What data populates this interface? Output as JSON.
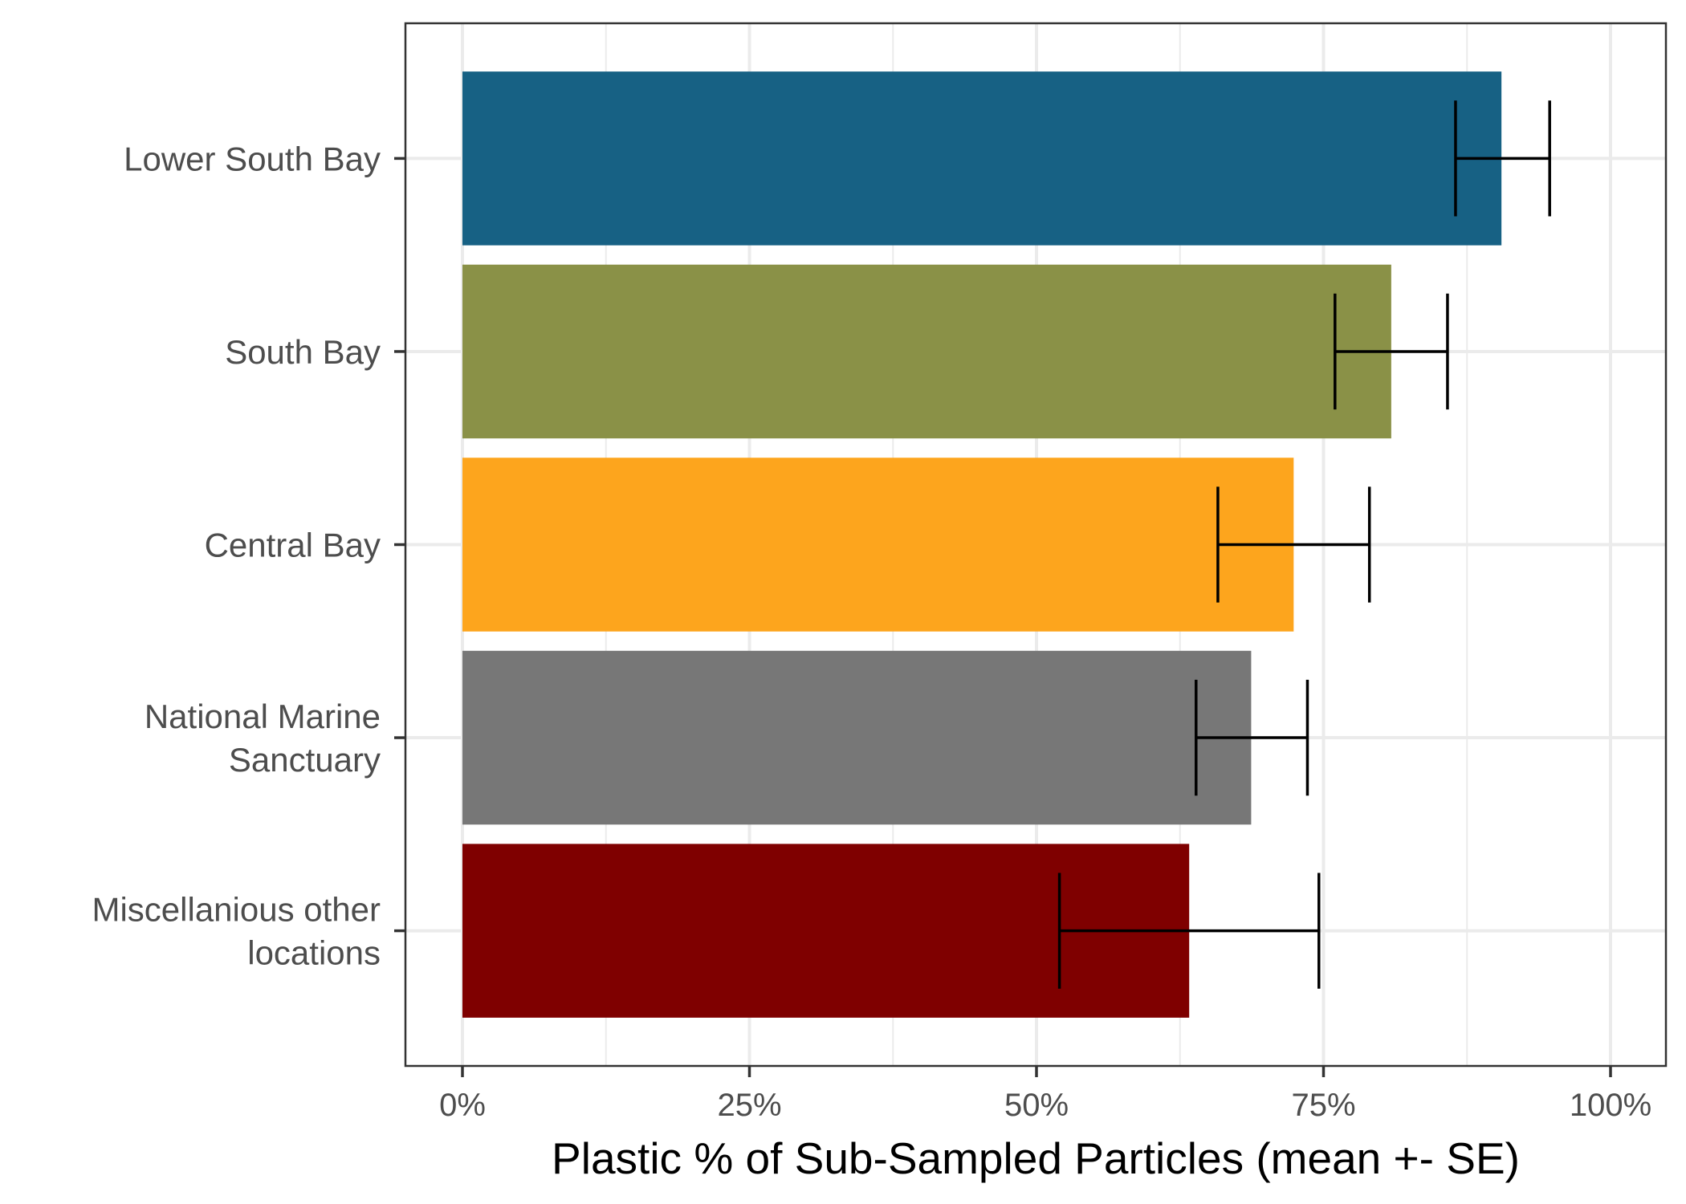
{
  "chart_data": {
    "type": "bar",
    "orientation": "horizontal",
    "title": "",
    "xlabel": "Plastic % of Sub-Sampled Particles (mean +- SE)",
    "ylabel": "",
    "xlim": [
      0,
      1
    ],
    "x_ticks": [
      0,
      0.25,
      0.5,
      0.75,
      1.0
    ],
    "x_tick_labels": [
      "0%",
      "25%",
      "50%",
      "75%",
      "100%"
    ],
    "grid": true,
    "legend": "none",
    "categories": [
      [
        "Lower South Bay"
      ],
      [
        "South Bay"
      ],
      [
        "Central Bay"
      ],
      [
        "National Marine",
        "Sanctuary"
      ],
      [
        "Miscellanious other",
        "locations"
      ]
    ],
    "values": [
      0.905,
      0.809,
      0.724,
      0.687,
      0.633
    ],
    "error_low": [
      0.865,
      0.76,
      0.658,
      0.639,
      0.52
    ],
    "error_high": [
      0.947,
      0.858,
      0.79,
      0.736,
      0.746
    ],
    "colors": [
      "#176184",
      "#8a9147",
      "#fda51d",
      "#777777",
      "#7f0000"
    ]
  }
}
